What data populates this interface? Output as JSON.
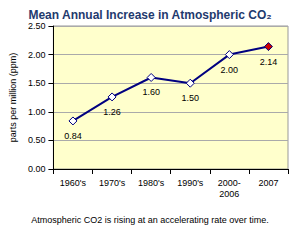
{
  "chart_data": {
    "type": "line",
    "title": "Mean Annual Increase in Atmospheric CO₂",
    "y_label": "parts per million (ppm)",
    "annotation": "Atmospheric CO2 is rising at an accelerating rate over time.",
    "categories": [
      "1960's",
      "1970's",
      "1980's",
      "1990's",
      "2000-\n2006",
      "2007"
    ],
    "values": [
      0.84,
      1.26,
      1.6,
      1.5,
      2.0,
      2.14
    ],
    "value_labels": [
      "0.84",
      "1.26",
      "1.60",
      "1.50",
      "2.00",
      "2.14"
    ],
    "color": "#000080",
    "colors": [
      "#ffffff",
      "#ffffff",
      "#ffffff",
      "#ffffff",
      "#ffffff",
      "#cc0000"
    ],
    "marker": "diamond",
    "line_style": "solid",
    "data_labels": true,
    "ylim": [
      0,
      2.5
    ],
    "yticks": [
      {
        "value": 0,
        "label": "0.00"
      },
      {
        "value": 0.5,
        "label": "0.50"
      },
      {
        "value": 1,
        "label": "1.00"
      },
      {
        "value": 1.5,
        "label": "1.50"
      },
      {
        "value": 2,
        "label": "2.00"
      },
      {
        "value": 2.5,
        "label": "2.50"
      }
    ],
    "grid": true
  }
}
